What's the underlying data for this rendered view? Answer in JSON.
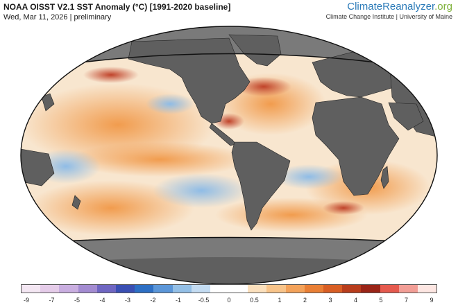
{
  "header": {
    "title": "NOAA OISST V2.1 SST Anomaly (°C) [1991-2020 baseline]",
    "subtitle": "Wed, Mar 11, 2026 | preliminary",
    "brand_main": "ClimateReanalyzer",
    "brand_tld": ".org",
    "brand_sub": "Climate Change Institute | University of Maine"
  },
  "colors": {
    "land": "#5f5f5f",
    "sea_ice": "#7a7a7a",
    "ocean_neutral": "#f6f4f1",
    "warm_light": "#f7cf9c",
    "warm": "#f19c4e",
    "hot": "#c0432a",
    "cool": "#b9d8f2"
  },
  "legend": {
    "ticks": [
      "-9",
      "-7",
      "-5",
      "-4",
      "-3",
      "-2",
      "-1",
      "-0.5",
      "0",
      "0.5",
      "1",
      "2",
      "3",
      "4",
      "5",
      "7",
      "9"
    ],
    "colors": [
      "#f4e7f3",
      "#e5cce9",
      "#c9aee0",
      "#a38bd1",
      "#6f66c2",
      "#3a4fb3",
      "#2d6fc4",
      "#5b96d8",
      "#93bfe6",
      "#c4dcf2",
      "#ffffff",
      "#ffffff",
      "#fbe0bd",
      "#f8c48a",
      "#f3a25a",
      "#e97f35",
      "#d85e24",
      "#b83d1c",
      "#9a2417",
      "#e55a4e",
      "#f29e96",
      "#fde6e2"
    ]
  }
}
